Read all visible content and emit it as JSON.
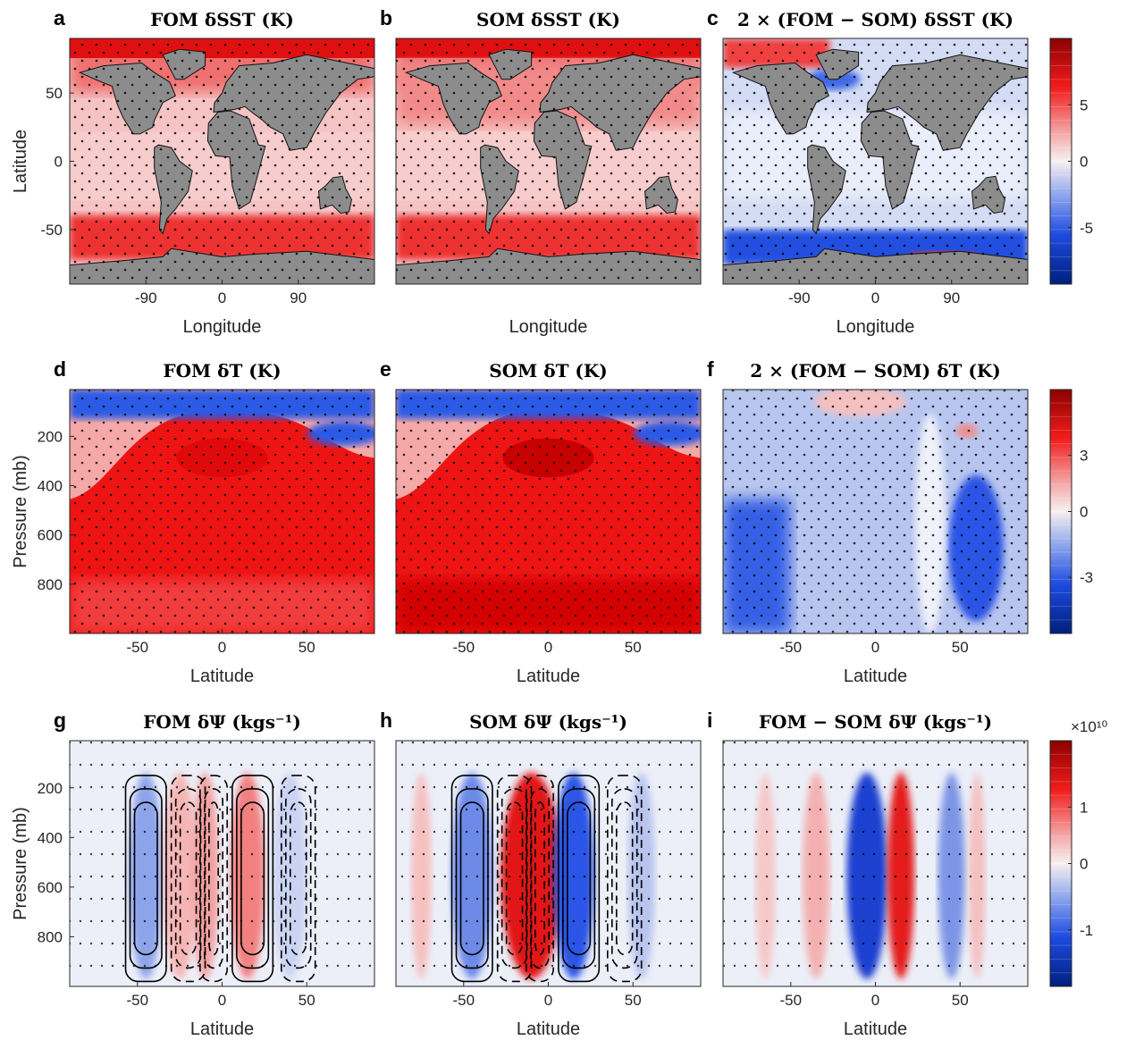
{
  "chart_data": [
    {
      "panel": "a",
      "type": "heatmap",
      "title": "FOM δSST (K)",
      "xlabel": "Longitude",
      "ylabel": "Latitude",
      "xticks": [
        "-90",
        "0",
        "90"
      ],
      "yticks": [
        "50",
        "0",
        "-50"
      ],
      "colorscale": "warm",
      "colorbar": false
    },
    {
      "panel": "b",
      "type": "heatmap",
      "title": "SOM δSST (K)",
      "xlabel": "Longitude",
      "ylabel": "",
      "xticks": [],
      "yticks": [],
      "colorscale": "warm",
      "colorbar": false
    },
    {
      "panel": "c",
      "type": "heatmap",
      "title": "2 × (FOM − SOM) δSST (K)",
      "xlabel": "Longitude",
      "ylabel": "",
      "xticks": [
        "-90",
        "0",
        "90"
      ],
      "yticks": [],
      "colorscale": "diverging",
      "colorbar": true,
      "cbar_ticks": [
        "5",
        "0",
        "-5"
      ],
      "cbar_exponent": ""
    },
    {
      "panel": "d",
      "type": "heatmap",
      "title": "FOM δT (K)",
      "xlabel": "Latitude",
      "ylabel": "Pressure (mb)",
      "xticks": [
        "-50",
        "0",
        "50"
      ],
      "yticks": [
        "200",
        "400",
        "600",
        "800"
      ],
      "colorscale": "warm",
      "colorbar": false
    },
    {
      "panel": "e",
      "type": "heatmap",
      "title": "SOM δT (K)",
      "xlabel": "Latitude",
      "ylabel": "",
      "xticks": [
        "-50",
        "0",
        "50"
      ],
      "yticks": [],
      "colorscale": "warm",
      "colorbar": false
    },
    {
      "panel": "f",
      "type": "heatmap",
      "title": "2 × (FOM − SOM) δT (K)",
      "xlabel": "Latitude",
      "ylabel": "",
      "xticks": [
        "-50",
        "0",
        "50"
      ],
      "yticks": [],
      "colorscale": "diverging",
      "colorbar": true,
      "cbar_ticks": [
        "3",
        "0",
        "-3"
      ],
      "cbar_exponent": ""
    },
    {
      "panel": "g",
      "type": "heatmap",
      "title": "FOM δΨ (kgs⁻¹)",
      "xlabel": "Latitude",
      "ylabel": "Pressure (mb)",
      "xticks": [
        "-50",
        "0",
        "50"
      ],
      "yticks": [
        "200",
        "400",
        "600",
        "800"
      ],
      "colorscale": "diverging",
      "colorbar": false
    },
    {
      "panel": "h",
      "type": "heatmap",
      "title": "SOM δΨ (kgs⁻¹)",
      "xlabel": "Latitude",
      "ylabel": "",
      "xticks": [
        "-50",
        "0",
        "50"
      ],
      "yticks": [],
      "colorscale": "diverging",
      "colorbar": false
    },
    {
      "panel": "i",
      "type": "heatmap",
      "title": "FOM − SOM δΨ (kgs⁻¹)",
      "xlabel": "Latitude",
      "ylabel": "",
      "xticks": [
        "-50",
        "0",
        "50"
      ],
      "yticks": [],
      "colorscale": "diverging",
      "colorbar": true,
      "cbar_ticks": [
        "1",
        "0",
        "-1"
      ],
      "cbar_exponent": "×10¹⁰"
    }
  ],
  "colors": {
    "warm_light": "#f6c9c9",
    "warm_mid": "#ff2a2a",
    "warm_dark": "#b00000",
    "cold_light": "#c8d2f2",
    "cold_mid": "#2a55e6",
    "cold_dark": "#00207a",
    "land": "#8c8c8c"
  }
}
